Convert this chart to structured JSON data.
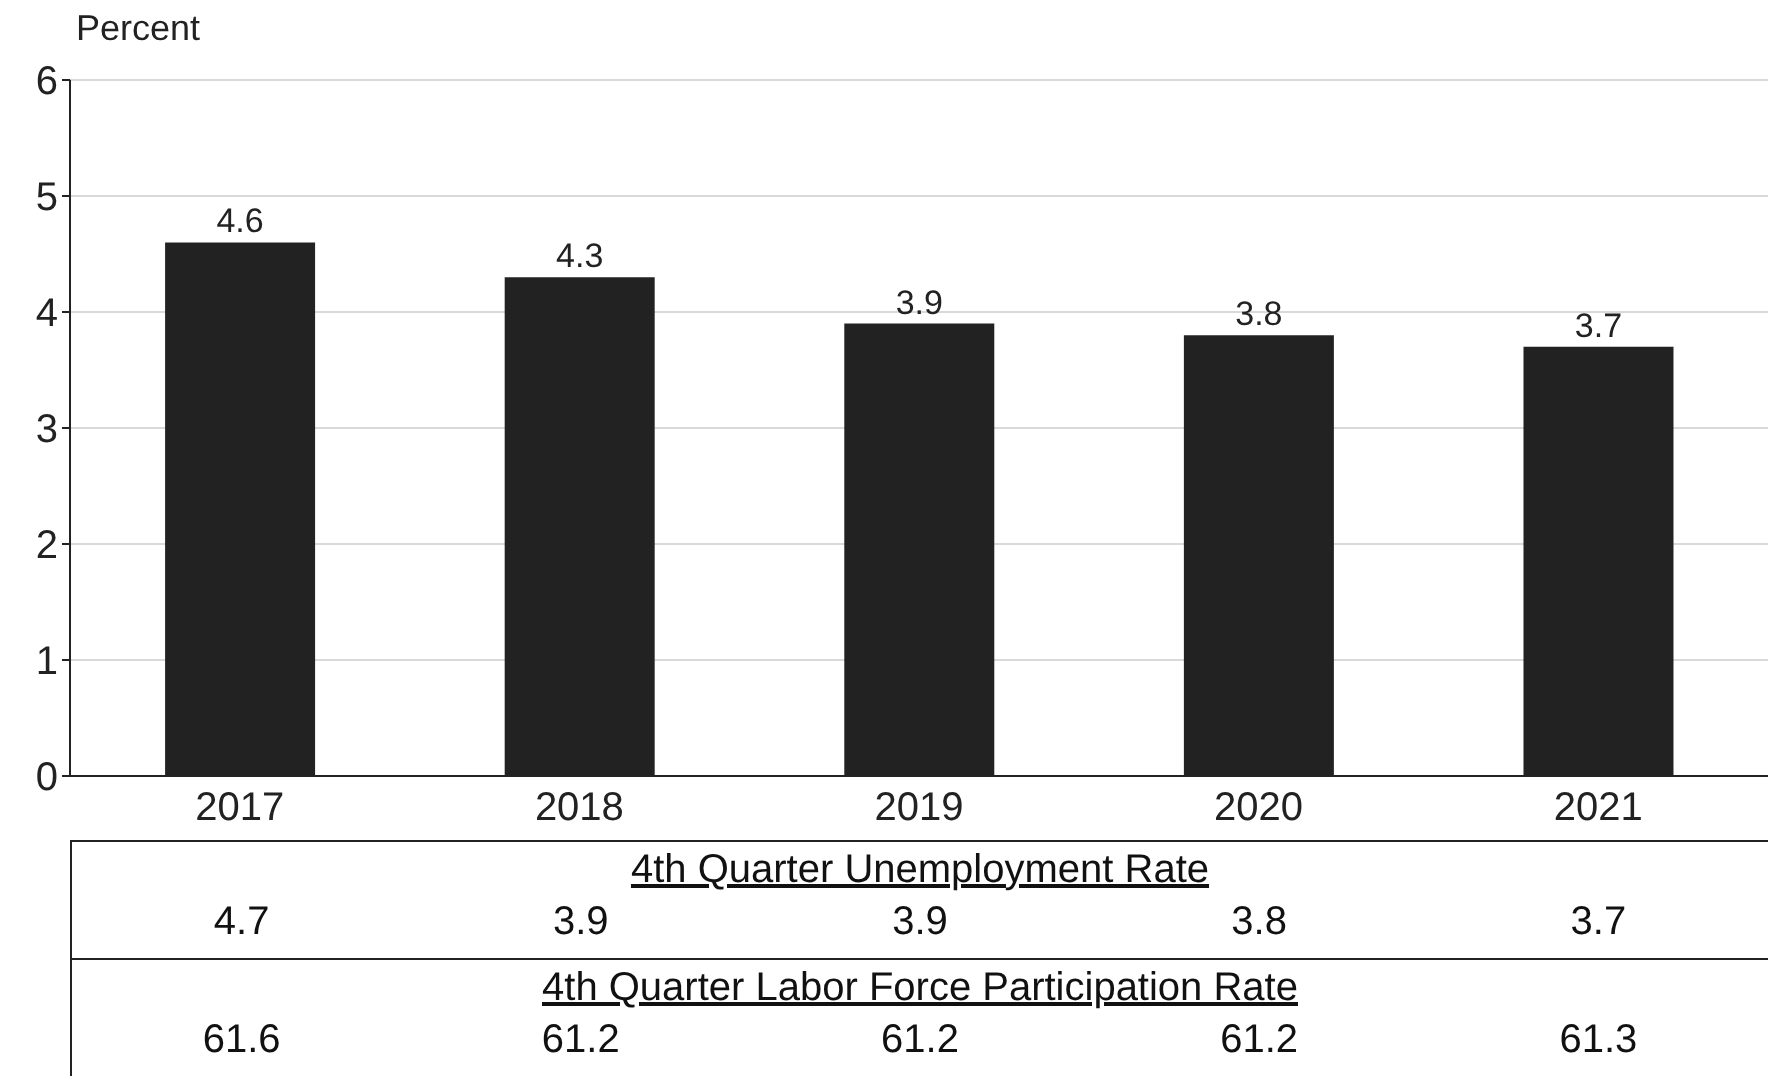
{
  "chart_data": {
    "type": "bar",
    "ylabel": "Percent",
    "categories": [
      "2017",
      "2018",
      "2019",
      "2020",
      "2021"
    ],
    "values": [
      4.6,
      4.3,
      3.9,
      3.8,
      3.7
    ],
    "color": "#222222",
    "ylim": [
      0,
      6
    ],
    "yticks": [
      0,
      1,
      2,
      3,
      4,
      5,
      6
    ],
    "grid": "y",
    "data_labels": true,
    "legend": false,
    "annotations": [
      "4th Quarter Unemployment Rate",
      "4.7",
      "3.9",
      "3.9",
      "3.8",
      "3.7",
      "4th Quarter Labor Force Participation Rate",
      "61.6",
      "61.2",
      "61.2",
      "61.2",
      "61.3"
    ]
  }
}
